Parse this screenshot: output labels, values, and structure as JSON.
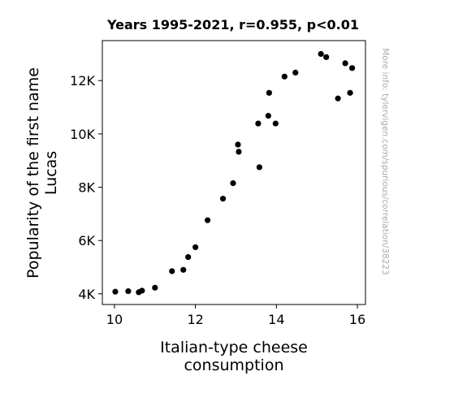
{
  "chart_data": {
    "type": "scatter",
    "title": "Years 1995-2021, r=0.955, p<0.01",
    "xlabel_lines": [
      "Italian-type cheese",
      "consumption"
    ],
    "ylabel_lines": [
      "Popularity of the first name",
      "Lucas"
    ],
    "watermark": "More info: tylervigen.com/spurious/correlation/38223",
    "xlim": [
      9.7,
      16.2
    ],
    "ylim": [
      3600,
      13500
    ],
    "x_ticks": [
      10,
      12,
      14,
      16
    ],
    "x_tick_labels": [
      "10",
      "12",
      "14",
      "16"
    ],
    "y_ticks": [
      4000,
      6000,
      8000,
      10000,
      12000
    ],
    "y_tick_labels": [
      "4K",
      "6K",
      "8K",
      "10K",
      "12K"
    ],
    "grid": false,
    "marker_color": "#000000",
    "points": [
      {
        "x": 10.02,
        "y": 4080
      },
      {
        "x": 10.34,
        "y": 4100
      },
      {
        "x": 10.6,
        "y": 4060
      },
      {
        "x": 10.68,
        "y": 4120
      },
      {
        "x": 11.0,
        "y": 4230
      },
      {
        "x": 11.42,
        "y": 4850
      },
      {
        "x": 11.7,
        "y": 4900
      },
      {
        "x": 11.82,
        "y": 5380
      },
      {
        "x": 12.0,
        "y": 5750
      },
      {
        "x": 12.3,
        "y": 6760
      },
      {
        "x": 12.68,
        "y": 7570
      },
      {
        "x": 12.93,
        "y": 8150
      },
      {
        "x": 13.05,
        "y": 9600
      },
      {
        "x": 13.07,
        "y": 9330
      },
      {
        "x": 13.55,
        "y": 10390
      },
      {
        "x": 13.58,
        "y": 8750
      },
      {
        "x": 13.8,
        "y": 10680
      },
      {
        "x": 13.82,
        "y": 11540
      },
      {
        "x": 13.98,
        "y": 10390
      },
      {
        "x": 14.2,
        "y": 12150
      },
      {
        "x": 14.47,
        "y": 12300
      },
      {
        "x": 15.1,
        "y": 13000
      },
      {
        "x": 15.23,
        "y": 12880
      },
      {
        "x": 15.52,
        "y": 11330
      },
      {
        "x": 15.7,
        "y": 12650
      },
      {
        "x": 15.82,
        "y": 11540
      },
      {
        "x": 15.87,
        "y": 12470
      }
    ]
  }
}
